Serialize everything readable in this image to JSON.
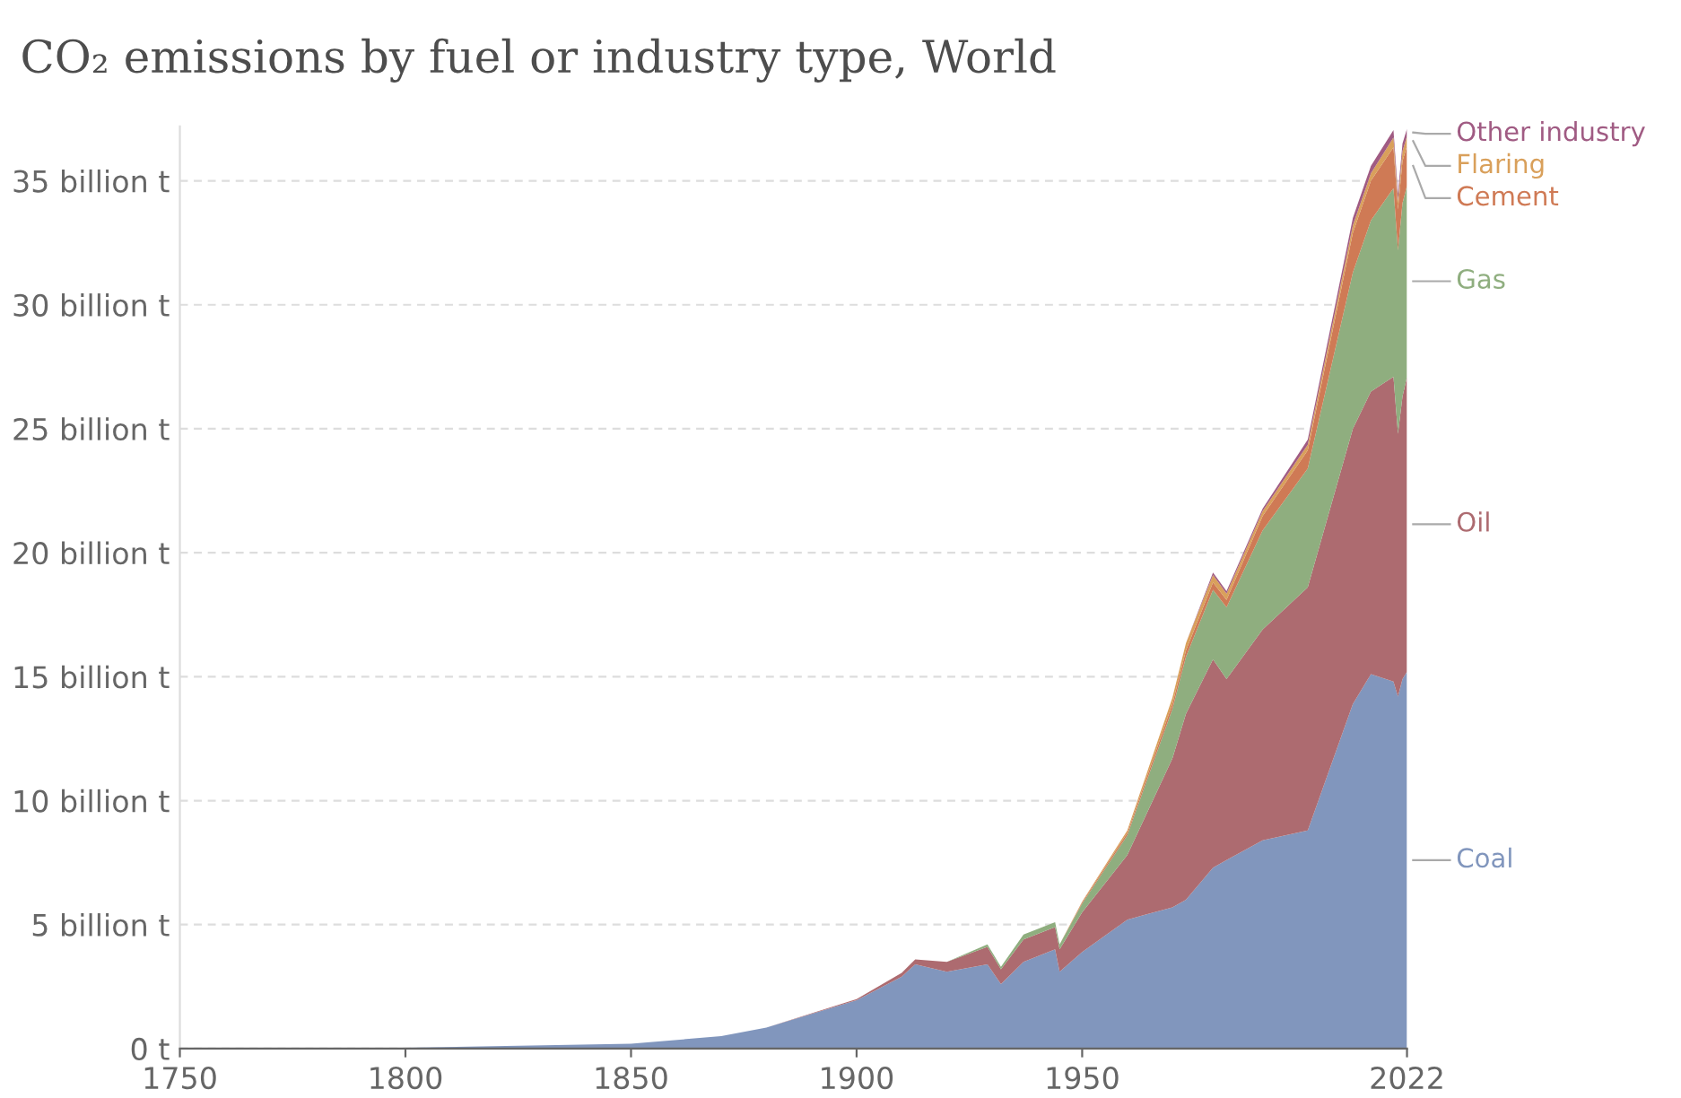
{
  "chart_data": {
    "type": "area",
    "stacked": true,
    "title": "CO₂ emissions by fuel or industry type, World",
    "x": [
      1750,
      1800,
      1850,
      1870,
      1880,
      1900,
      1910,
      1913,
      1920,
      1929,
      1932,
      1937,
      1944,
      1945,
      1950,
      1960,
      1970,
      1973,
      1979,
      1982,
      1990,
      2000,
      2010,
      2014,
      2019,
      2020,
      2021,
      2022
    ],
    "series": [
      {
        "name": "Coal",
        "color": "#8196bd",
        "values": [
          0.01,
          0.03,
          0.2,
          0.5,
          0.85,
          1.95,
          2.9,
          3.4,
          3.1,
          3.4,
          2.6,
          3.5,
          4.0,
          3.1,
          3.9,
          5.2,
          5.7,
          6.0,
          7.3,
          7.6,
          8.4,
          8.8,
          13.9,
          15.1,
          14.8,
          14.2,
          14.9,
          15.2
        ]
      },
      {
        "name": "Oil",
        "color": "#ad6b70",
        "values": [
          0,
          0,
          0,
          0,
          0,
          0.05,
          0.15,
          0.2,
          0.4,
          0.7,
          0.6,
          0.9,
          0.9,
          0.9,
          1.6,
          2.6,
          6.0,
          7.5,
          8.4,
          7.3,
          8.5,
          9.8,
          11.1,
          11.4,
          12.3,
          10.6,
          11.4,
          11.9
        ]
      },
      {
        "name": "Gas",
        "color": "#8fae7f",
        "values": [
          0,
          0,
          0,
          0,
          0,
          0,
          0,
          0,
          0,
          0.1,
          0.1,
          0.2,
          0.2,
          0.2,
          0.35,
          0.8,
          2.0,
          2.3,
          2.8,
          2.9,
          4.0,
          4.8,
          6.3,
          6.9,
          7.6,
          7.4,
          7.8,
          7.7
        ]
      },
      {
        "name": "Cement",
        "color": "#cf7a55",
        "values": [
          0,
          0,
          0,
          0,
          0,
          0,
          0,
          0,
          0,
          0,
          0,
          0,
          0,
          0,
          0.05,
          0.1,
          0.2,
          0.25,
          0.3,
          0.3,
          0.58,
          0.73,
          1.6,
          1.6,
          1.65,
          1.65,
          1.7,
          1.6
        ]
      },
      {
        "name": "Flaring",
        "color": "#d9a05b",
        "values": [
          0,
          0,
          0,
          0,
          0,
          0,
          0,
          0,
          0,
          0,
          0,
          0,
          0,
          0,
          0.03,
          0.1,
          0.25,
          0.3,
          0.3,
          0.25,
          0.2,
          0.23,
          0.3,
          0.3,
          0.4,
          0.35,
          0.4,
          0.4
        ]
      },
      {
        "name": "Other industry",
        "color": "#a05b83",
        "values": [
          0,
          0,
          0,
          0,
          0,
          0,
          0,
          0,
          0,
          0,
          0,
          0,
          0,
          0,
          0,
          0,
          0,
          0,
          0.1,
          0.1,
          0.1,
          0.2,
          0.3,
          0.3,
          0.3,
          0.3,
          0.3,
          0.3
        ]
      }
    ],
    "xlim": [
      1750,
      2022
    ],
    "xticks": [
      1750,
      1800,
      1850,
      1900,
      1950,
      2022
    ],
    "ylim": [
      0,
      37.2
    ],
    "yticks": [
      {
        "value": 0,
        "label": "0 t"
      },
      {
        "value": 5,
        "label": "5 billion t"
      },
      {
        "value": 10,
        "label": "10 billion t"
      },
      {
        "value": 15,
        "label": "15 billion t"
      },
      {
        "value": 20,
        "label": "20 billion t"
      },
      {
        "value": 25,
        "label": "25 billion t"
      },
      {
        "value": 30,
        "label": "30 billion t"
      },
      {
        "value": 35,
        "label": "35 billion t"
      }
    ],
    "grid": "y",
    "legend": "right"
  }
}
